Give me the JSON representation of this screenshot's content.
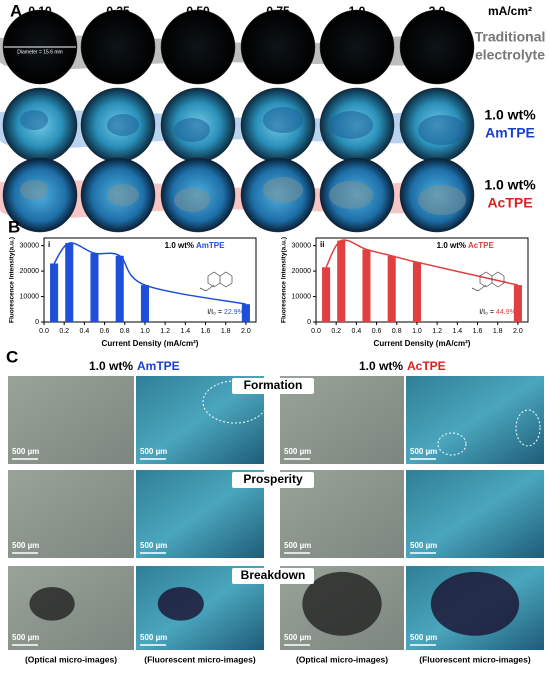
{
  "panel_a": {
    "label": "A",
    "columns": [
      "0.10",
      "0.25",
      "0.50",
      "0.75",
      "1.0",
      "2.0"
    ],
    "unit": "mA/cm²",
    "diameter_note": "Diameter = 15.6 mm",
    "rows": [
      [
        "Traditional",
        "electrolyte"
      ],
      [
        "1.0 wt%",
        "AmTPE"
      ],
      [
        "1.0 wt%",
        "AcTPE"
      ]
    ]
  },
  "panel_b": {
    "label": "B"
  },
  "chart_data": [
    {
      "type": "bar",
      "label": "i",
      "annotation": [
        "1.0 wt%",
        "AmTPE"
      ],
      "ratio_text": "I/I₀ =",
      "ratio_value": "22.9%",
      "x": [
        0.1,
        0.25,
        0.5,
        0.75,
        1.0,
        2.0
      ],
      "values": [
        23000,
        31000,
        27000,
        26000,
        14500,
        7000
      ],
      "color": "#1f4fd8",
      "xlim": [
        0,
        2.1
      ],
      "ylim": [
        0,
        33000
      ],
      "xticks": [
        {
          "value": 0,
          "label": "0.0"
        },
        0.2,
        0.4,
        0.6,
        0.8,
        {
          "value": 1,
          "label": "1.0"
        },
        1.2,
        1.4,
        1.6,
        1.8,
        {
          "value": 2,
          "label": "2.0"
        }
      ],
      "yticks": [
        0,
        10000,
        20000,
        30000
      ],
      "xlabel": "Current Density (mA/cm²)",
      "ylabel": "Fluorescence Intensity(a.u.)"
    },
    {
      "type": "bar",
      "label": "ii",
      "annotation": [
        "1.0 wt%",
        "AcTPE"
      ],
      "ratio_text": "I/I₀ =",
      "ratio_value": "44.9%",
      "x": [
        0.1,
        0.25,
        0.5,
        0.75,
        1.0,
        2.0
      ],
      "values": [
        21500,
        32000,
        28500,
        26000,
        23500,
        14500
      ],
      "color": "#e04040",
      "xlim": [
        0,
        2.1
      ],
      "ylim": [
        0,
        33000
      ],
      "xticks": [
        {
          "value": 0,
          "label": "0.0"
        },
        0.2,
        0.4,
        0.6,
        0.8,
        {
          "value": 1,
          "label": "1.0"
        },
        1.2,
        1.4,
        1.6,
        1.8,
        {
          "value": 2,
          "label": "2.0"
        }
      ],
      "yticks": [
        0,
        10000,
        20000,
        30000
      ],
      "xlabel": "Current Density (mA/cm²)",
      "ylabel": "Fluorescence Intensity(a.u.)"
    }
  ],
  "panel_c": {
    "label": "C",
    "headers": [
      [
        "1.0 wt%",
        "AmTPE"
      ],
      [
        "1.0 wt%",
        "AcTPE"
      ]
    ],
    "stages": [
      "Formation",
      "Prosperity",
      "Breakdown"
    ],
    "scale_bar": "500 µm",
    "captions": [
      "(Optical micro-images)",
      "(Fluorescent micro-images)",
      "(Optical micro-images)",
      "(Fluorescent micro-images)"
    ]
  }
}
